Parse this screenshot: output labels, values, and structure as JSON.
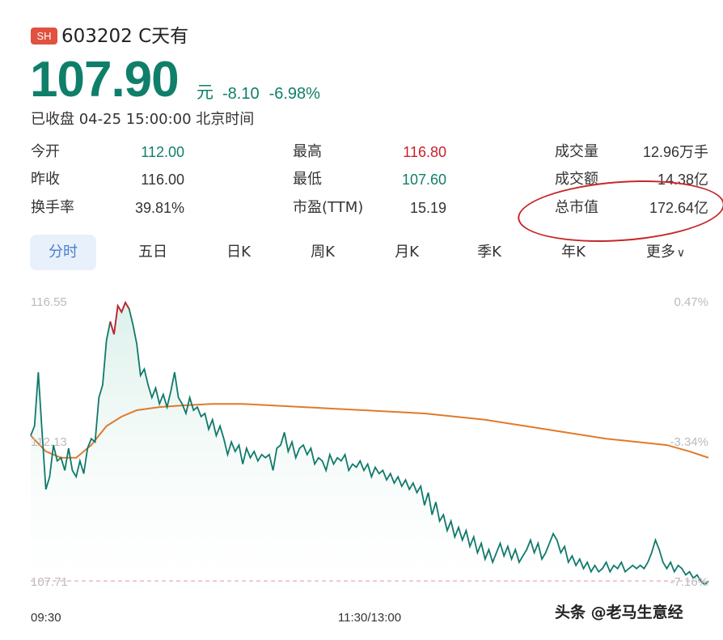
{
  "header": {
    "exchange_badge": "SH",
    "stock_name": "603202 C天有",
    "price": "107.90",
    "price_unit": "元",
    "change": "-8.10",
    "change_pct": "-6.98%",
    "status": "已收盘 04-25 15:00:00 北京时间"
  },
  "stats": {
    "open_label": "今开",
    "open_value": "112.00",
    "prev_close_label": "昨收",
    "prev_close_value": "116.00",
    "turnover_rate_label": "换手率",
    "turnover_rate_value": "39.81%",
    "high_label": "最高",
    "high_value": "116.80",
    "low_label": "最低",
    "low_value": "107.60",
    "pe_label": "市盈(TTM)",
    "pe_value": "15.19",
    "volume_label": "成交量",
    "volume_value": "12.96万手",
    "amount_label": "成交额",
    "amount_value": "14.38亿",
    "market_cap_label": "总市值",
    "market_cap_value": "172.64亿"
  },
  "tabs": [
    {
      "label": "分时",
      "active": true
    },
    {
      "label": "五日"
    },
    {
      "label": "日K"
    },
    {
      "label": "周K"
    },
    {
      "label": "月K"
    },
    {
      "label": "季K"
    },
    {
      "label": "年K"
    },
    {
      "label": "更多"
    }
  ],
  "colors": {
    "price_line": "#10796a",
    "avg_line": "#e07a2b",
    "up": "#c8202d",
    "down": "#0f7f6a",
    "annotation": "#c62828"
  },
  "chart_data": {
    "type": "line",
    "y_left_ticks": [
      "116.55",
      "112.13",
      "107.71"
    ],
    "y_right_ticks": [
      "0.47%",
      "-3.34%",
      "-7.16%"
    ],
    "x_ticks": [
      "09:30",
      "11:30/13:00"
    ],
    "ylim": [
      107.71,
      116.55
    ],
    "x_minutes_total": 240,
    "series": [
      {
        "values": [
          [
            0,
            112.3
          ],
          [
            1,
            112.6
          ],
          [
            2,
            114.3
          ],
          [
            3,
            112.4
          ],
          [
            4,
            110.6
          ],
          [
            5,
            111.0
          ],
          [
            6,
            112.0
          ],
          [
            7,
            111.5
          ],
          [
            8,
            111.6
          ],
          [
            9,
            111.2
          ],
          [
            10,
            111.9
          ],
          [
            11,
            111.2
          ],
          [
            12,
            111.0
          ],
          [
            13,
            111.5
          ],
          [
            14,
            111.1
          ],
          [
            15,
            111.9
          ],
          [
            16,
            112.2
          ],
          [
            17,
            112.1
          ],
          [
            18,
            113.5
          ],
          [
            19,
            113.9
          ],
          [
            20,
            115.3
          ],
          [
            21,
            115.9
          ],
          [
            22,
            115.5
          ],
          [
            23,
            116.4
          ],
          [
            24,
            116.2
          ],
          [
            25,
            116.5
          ],
          [
            26,
            116.3
          ],
          [
            27,
            115.8
          ],
          [
            28,
            115.2
          ],
          [
            29,
            114.2
          ],
          [
            30,
            114.4
          ],
          [
            31,
            113.9
          ],
          [
            32,
            113.5
          ],
          [
            33,
            113.8
          ],
          [
            34,
            113.3
          ],
          [
            35,
            113.6
          ],
          [
            36,
            113.2
          ],
          [
            37,
            113.7
          ],
          [
            38,
            114.3
          ],
          [
            39,
            113.5
          ],
          [
            40,
            113.3
          ],
          [
            41,
            113.0
          ],
          [
            42,
            113.5
          ],
          [
            43,
            113.1
          ],
          [
            44,
            113.2
          ],
          [
            45,
            112.9
          ],
          [
            46,
            113.0
          ],
          [
            47,
            112.5
          ],
          [
            48,
            112.8
          ],
          [
            49,
            112.3
          ],
          [
            50,
            112.6
          ],
          [
            51,
            112.2
          ],
          [
            52,
            111.7
          ],
          [
            53,
            112.1
          ],
          [
            54,
            111.8
          ],
          [
            55,
            112.0
          ],
          [
            56,
            111.4
          ],
          [
            57,
            111.9
          ],
          [
            58,
            111.6
          ],
          [
            59,
            111.8
          ],
          [
            60,
            111.5
          ],
          [
            61,
            111.7
          ],
          [
            62,
            111.6
          ],
          [
            63,
            111.7
          ],
          [
            64,
            111.2
          ],
          [
            65,
            111.9
          ],
          [
            66,
            112.0
          ],
          [
            67,
            112.4
          ],
          [
            68,
            111.8
          ],
          [
            69,
            112.1
          ],
          [
            70,
            111.6
          ],
          [
            71,
            111.9
          ],
          [
            72,
            112.0
          ],
          [
            73,
            111.7
          ],
          [
            74,
            111.9
          ],
          [
            75,
            111.4
          ],
          [
            76,
            111.6
          ],
          [
            77,
            111.5
          ],
          [
            78,
            111.2
          ],
          [
            79,
            111.7
          ],
          [
            80,
            111.4
          ],
          [
            81,
            111.6
          ],
          [
            82,
            111.5
          ],
          [
            83,
            111.7
          ],
          [
            84,
            111.2
          ],
          [
            85,
            111.4
          ],
          [
            86,
            111.3
          ],
          [
            87,
            111.5
          ],
          [
            88,
            111.2
          ],
          [
            89,
            111.4
          ],
          [
            90,
            111.0
          ],
          [
            91,
            111.3
          ],
          [
            92,
            111.1
          ],
          [
            93,
            111.2
          ],
          [
            94,
            110.9
          ],
          [
            95,
            111.1
          ],
          [
            96,
            110.8
          ],
          [
            97,
            111.0
          ],
          [
            98,
            110.7
          ],
          [
            99,
            110.9
          ],
          [
            100,
            110.6
          ],
          [
            101,
            110.8
          ],
          [
            102,
            110.5
          ],
          [
            103,
            110.7
          ],
          [
            104,
            110.1
          ],
          [
            105,
            110.5
          ],
          [
            106,
            109.8
          ],
          [
            107,
            110.2
          ],
          [
            108,
            109.6
          ],
          [
            109,
            109.8
          ],
          [
            110,
            109.3
          ],
          [
            111,
            109.6
          ],
          [
            112,
            109.1
          ],
          [
            113,
            109.4
          ],
          [
            114,
            109.0
          ],
          [
            115,
            109.3
          ],
          [
            116,
            108.8
          ],
          [
            117,
            109.1
          ],
          [
            118,
            108.6
          ],
          [
            119,
            108.9
          ],
          [
            120,
            108.4
          ],
          [
            121,
            108.7
          ],
          [
            122,
            108.3
          ],
          [
            123,
            108.6
          ],
          [
            124,
            108.9
          ],
          [
            125,
            108.5
          ],
          [
            126,
            108.8
          ],
          [
            127,
            108.4
          ],
          [
            128,
            108.7
          ],
          [
            129,
            108.3
          ],
          [
            130,
            108.5
          ],
          [
            131,
            108.7
          ],
          [
            132,
            109.0
          ],
          [
            133,
            108.6
          ],
          [
            134,
            108.9
          ],
          [
            135,
            108.4
          ],
          [
            136,
            108.6
          ],
          [
            137,
            108.9
          ],
          [
            138,
            109.2
          ],
          [
            139,
            109.0
          ],
          [
            140,
            108.6
          ],
          [
            141,
            108.8
          ],
          [
            142,
            108.3
          ],
          [
            143,
            108.5
          ],
          [
            144,
            108.2
          ],
          [
            145,
            108.4
          ],
          [
            146,
            108.1
          ],
          [
            147,
            108.3
          ],
          [
            148,
            108.0
          ],
          [
            149,
            108.2
          ],
          [
            150,
            108.0
          ],
          [
            151,
            108.1
          ],
          [
            152,
            108.3
          ],
          [
            153,
            108.0
          ],
          [
            154,
            108.2
          ],
          [
            155,
            108.1
          ],
          [
            156,
            108.3
          ],
          [
            157,
            108.0
          ],
          [
            158,
            108.1
          ],
          [
            159,
            108.2
          ],
          [
            160,
            108.1
          ],
          [
            161,
            108.2
          ],
          [
            162,
            108.1
          ],
          [
            163,
            108.3
          ],
          [
            164,
            108.6
          ],
          [
            165,
            109.0
          ],
          [
            166,
            108.7
          ],
          [
            167,
            108.3
          ],
          [
            168,
            108.1
          ],
          [
            169,
            108.3
          ],
          [
            170,
            108.0
          ],
          [
            171,
            108.2
          ],
          [
            172,
            108.1
          ],
          [
            173,
            107.9
          ],
          [
            174,
            108.0
          ],
          [
            175,
            107.8
          ],
          [
            176,
            107.9
          ],
          [
            177,
            107.7
          ],
          [
            178,
            107.6
          ],
          [
            179,
            107.7
          ]
        ],
        "normalize_x_to": 180
      },
      {
        "values": [
          [
            0,
            112.3
          ],
          [
            4,
            111.8
          ],
          [
            8,
            111.6
          ],
          [
            12,
            111.6
          ],
          [
            16,
            112.0
          ],
          [
            20,
            112.6
          ],
          [
            24,
            112.9
          ],
          [
            28,
            113.1
          ],
          [
            34,
            113.2
          ],
          [
            40,
            113.25
          ],
          [
            48,
            113.3
          ],
          [
            56,
            113.3
          ],
          [
            64,
            113.25
          ],
          [
            72,
            113.2
          ],
          [
            80,
            113.15
          ],
          [
            88,
            113.1
          ],
          [
            96,
            113.05
          ],
          [
            104,
            113.0
          ],
          [
            112,
            112.9
          ],
          [
            120,
            112.8
          ],
          [
            128,
            112.65
          ],
          [
            136,
            112.5
          ],
          [
            144,
            112.35
          ],
          [
            152,
            112.2
          ],
          [
            160,
            112.1
          ],
          [
            168,
            112.0
          ],
          [
            174,
            111.8
          ],
          [
            179,
            111.6
          ]
        ],
        "normalize_x_to": 180
      }
    ]
  },
  "watermark": "头条 @老马生意经"
}
